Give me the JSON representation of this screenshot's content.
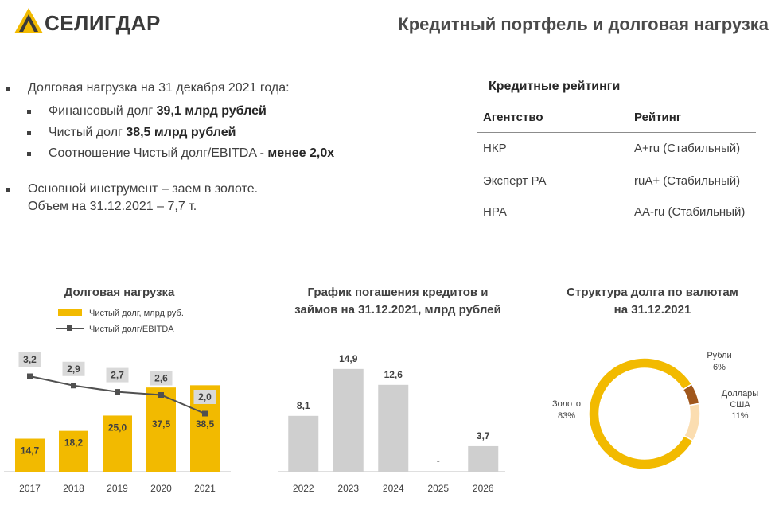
{
  "header": {
    "logo_text": "СЕЛИГДАР",
    "title": "Кредитный портфель и долговая нагрузка"
  },
  "bullets": {
    "b1": "Долговая нагрузка на 31 декабря 2021 года:",
    "b1_1_prefix": "Финансовый долг ",
    "b1_1_value": "39,1 млрд рублей",
    "b1_2_prefix": "Чистый долг ",
    "b1_2_value": "38,5 млрд рублей",
    "b1_3_prefix": "Соотношение Чистый долг/EBITDA  - ",
    "b1_3_value": "менее 2,0х",
    "b2_line1": "Основной инструмент – заем в золоте.",
    "b2_line2": "Объем на 31.12.2021 – 7,7 т."
  },
  "ratings": {
    "title": "Кредитные рейтинги",
    "col_agency": "Агентство",
    "col_rating": "Рейтинг",
    "rows": [
      {
        "agency": "НКР",
        "rating": "A+ru (Стабильный)"
      },
      {
        "agency": "Эксперт РА",
        "rating": "ruA+ (Стабильный)"
      },
      {
        "agency": "НРА",
        "rating": "AA-ru (Стабильный)"
      }
    ]
  },
  "colors": {
    "gold": "#F2BA00",
    "gray_bar": "#CFCFCF",
    "line": "#505050",
    "label_bg": "#D9D9D9",
    "rub": "#A0571C",
    "usd": "#FBDDB0"
  },
  "chart_data": [
    {
      "type": "bar",
      "title": "Долговая нагрузка",
      "categories": [
        "2017",
        "2018",
        "2019",
        "2020",
        "2021"
      ],
      "series": [
        {
          "name": "Чистый долг, млрд руб.",
          "type": "bar",
          "values": [
            14.7,
            18.2,
            25.0,
            37.5,
            38.5
          ],
          "labels": [
            "14,7",
            "18,2",
            "25,0",
            "37,5",
            "38,5"
          ]
        },
        {
          "name": "Чистый долг/EBITDA",
          "type": "line",
          "values": [
            3.2,
            2.9,
            2.7,
            2.6,
            2.0
          ],
          "labels": [
            "3,2",
            "2,9",
            "2,7",
            "2,6",
            "2,0"
          ]
        }
      ],
      "legend_position": "top-left"
    },
    {
      "type": "bar",
      "title_line1": "График погашения кредитов и",
      "title_line2": "займов на 31.12.2021, млрд рублей",
      "categories": [
        "2022",
        "2023",
        "2024",
        "2025",
        "2026"
      ],
      "values": [
        8.1,
        14.9,
        12.6,
        0,
        3.7
      ],
      "labels": [
        "8,1",
        "14,9",
        "12,6",
        "-",
        "3,7"
      ]
    },
    {
      "type": "pie",
      "title_line1": "Структура долга по валютам",
      "title_line2": "на 31.12.2021",
      "slices": [
        {
          "name": "Рубли",
          "value": 6,
          "label": "6%"
        },
        {
          "name": "Доллары США",
          "name_line1": "Доллары",
          "name_line2": "США",
          "value": 11,
          "label": "11%"
        },
        {
          "name": "Золото",
          "value": 83,
          "label": "83%"
        }
      ]
    }
  ]
}
